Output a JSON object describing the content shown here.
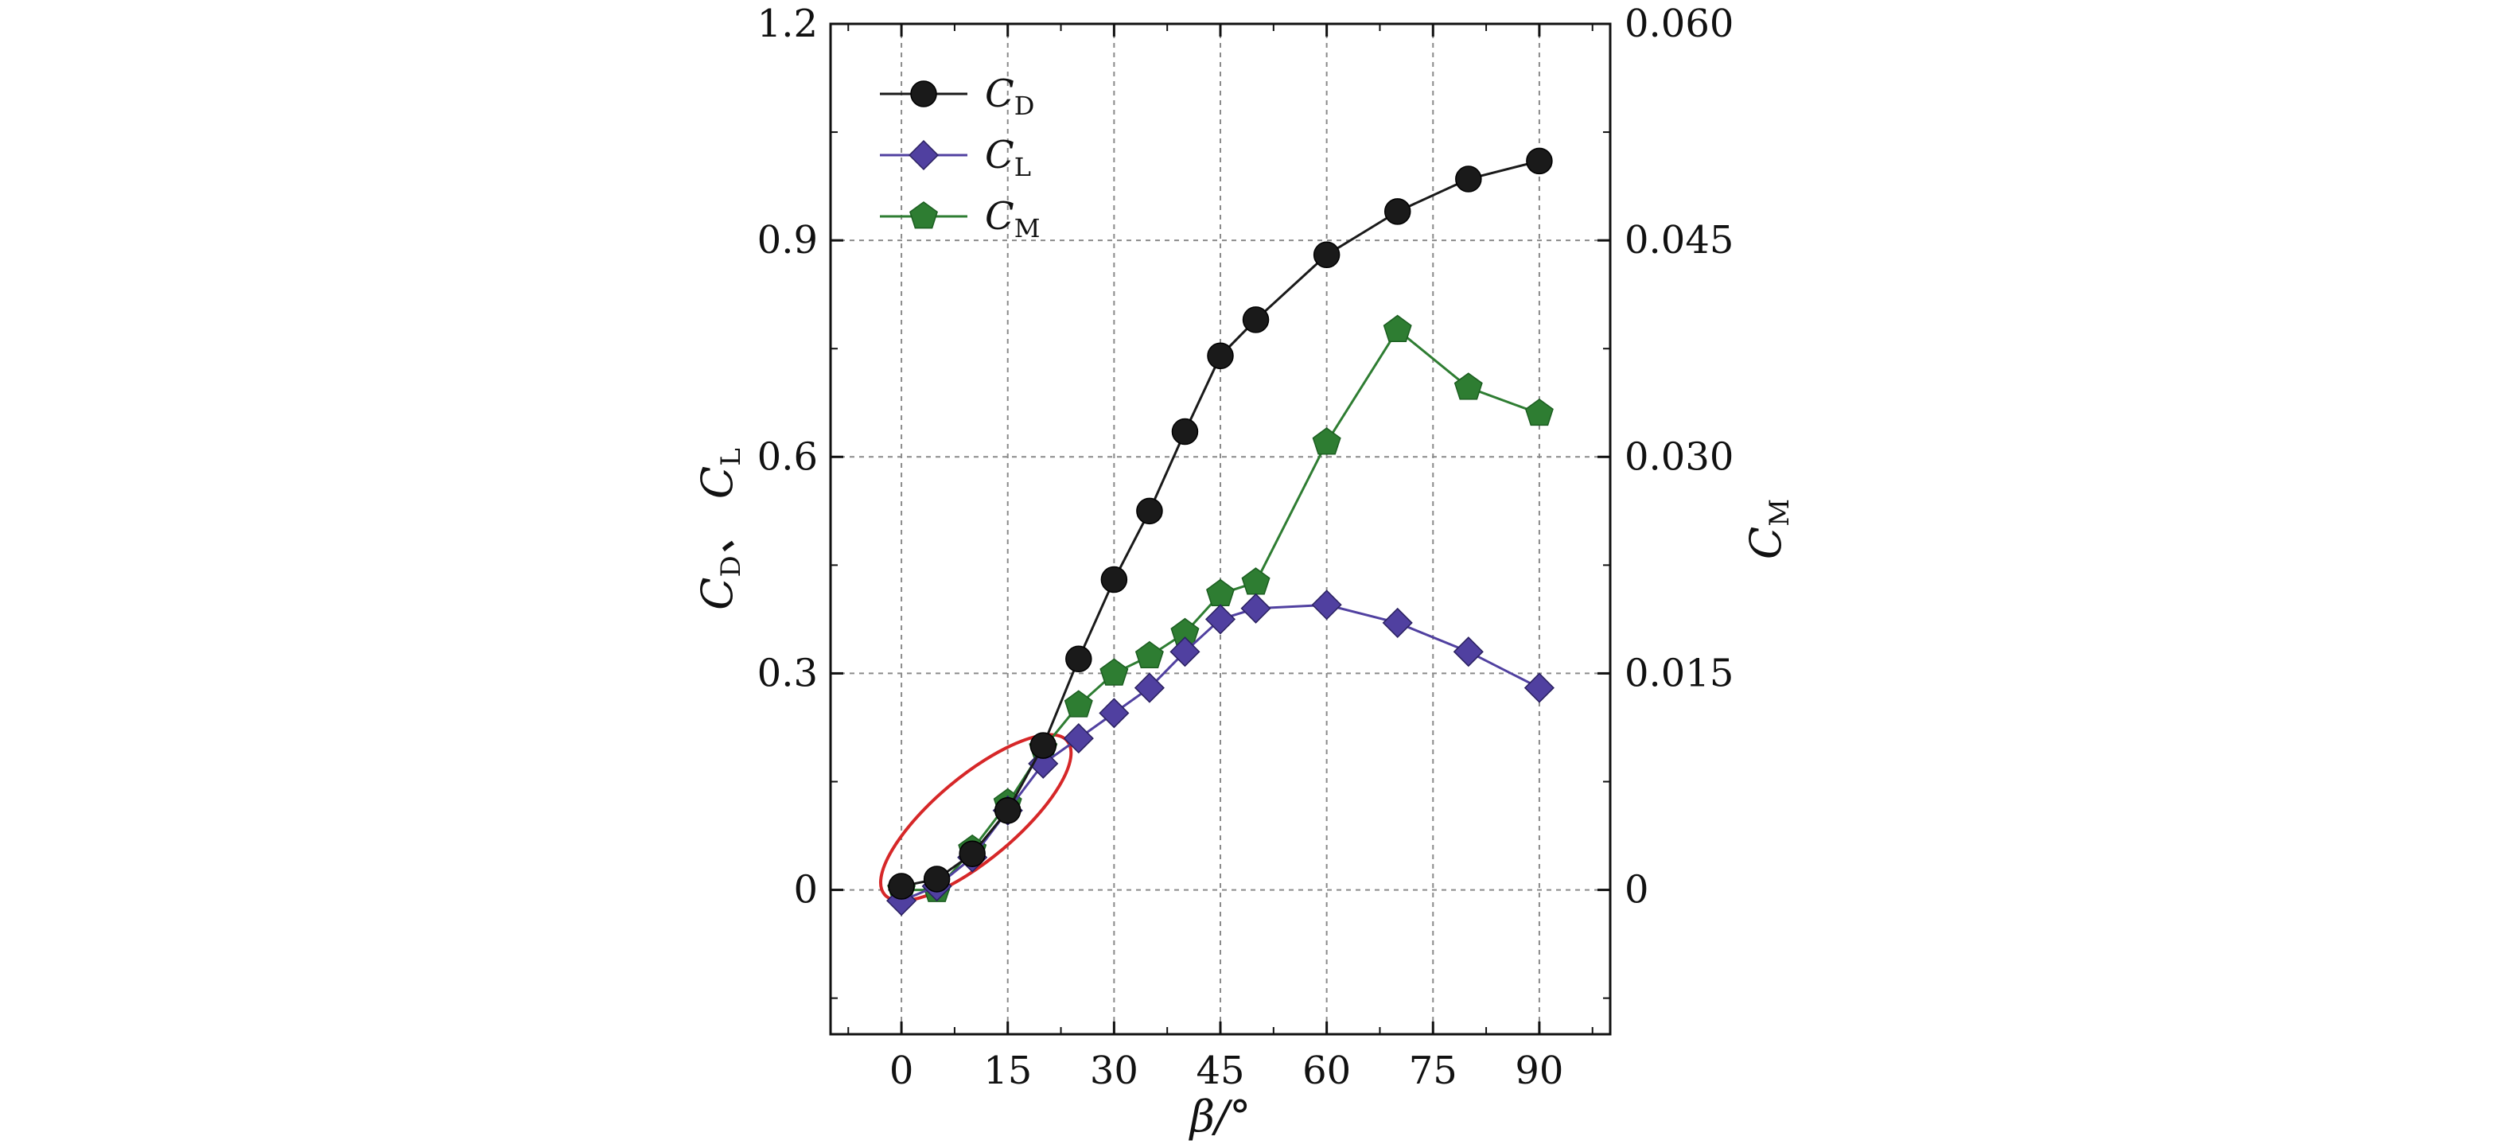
{
  "chart_data": {
    "type": "line",
    "x": [
      0,
      5,
      10,
      15,
      20,
      25,
      30,
      35,
      40,
      45,
      50,
      60,
      70,
      80,
      90
    ],
    "xlim": [
      -10,
      100
    ],
    "xticks": [
      0,
      15,
      30,
      45,
      60,
      75,
      90
    ],
    "xlabel": "β/°",
    "ylabel_left": {
      "parts": [
        "C",
        "D",
        "、 C",
        "L"
      ]
    },
    "ylabel_right": {
      "parts": [
        "C",
        "M"
      ]
    },
    "ylim_left": [
      -0.2,
      1.2
    ],
    "yticks_left": [
      0,
      0.3,
      0.6,
      0.9,
      1.2
    ],
    "ytick_labels_left": [
      "0",
      "0.3",
      "0.6",
      "0.9",
      "1.2"
    ],
    "ylim_right": [
      -0.01,
      0.06
    ],
    "yticks_right": [
      0,
      0.015,
      0.03,
      0.045,
      0.06
    ],
    "ytick_labels_right": [
      "0",
      "0.015",
      "0.030",
      "0.045",
      "0.060"
    ],
    "grid": true,
    "legend_position": "top-left",
    "series": [
      {
        "name": "C",
        "sub": "D",
        "axis": "left",
        "marker": "circle",
        "color": "#1a1a1a",
        "values": [
          0.005,
          0.015,
          0.05,
          0.11,
          0.2,
          0.32,
          0.43,
          0.525,
          0.635,
          0.74,
          0.79,
          0.88,
          0.94,
          0.985,
          1.01
        ]
      },
      {
        "name": "C",
        "sub": "L",
        "axis": "left",
        "marker": "diamond",
        "color": "#5040a0",
        "values": [
          -0.015,
          0.005,
          0.045,
          0.11,
          0.175,
          0.21,
          0.245,
          0.28,
          0.33,
          0.375,
          0.39,
          0.395,
          0.37,
          0.33,
          0.28
        ]
      },
      {
        "name": "C",
        "sub": "M",
        "axis": "right",
        "marker": "pentagon",
        "color": "#2e7d32",
        "values": [
          0.0,
          0.0,
          0.0028,
          0.006,
          0.0098,
          0.0128,
          0.015,
          0.0162,
          0.0178,
          0.0205,
          0.0213,
          0.031,
          0.0388,
          0.0348,
          0.033
        ]
      }
    ]
  }
}
